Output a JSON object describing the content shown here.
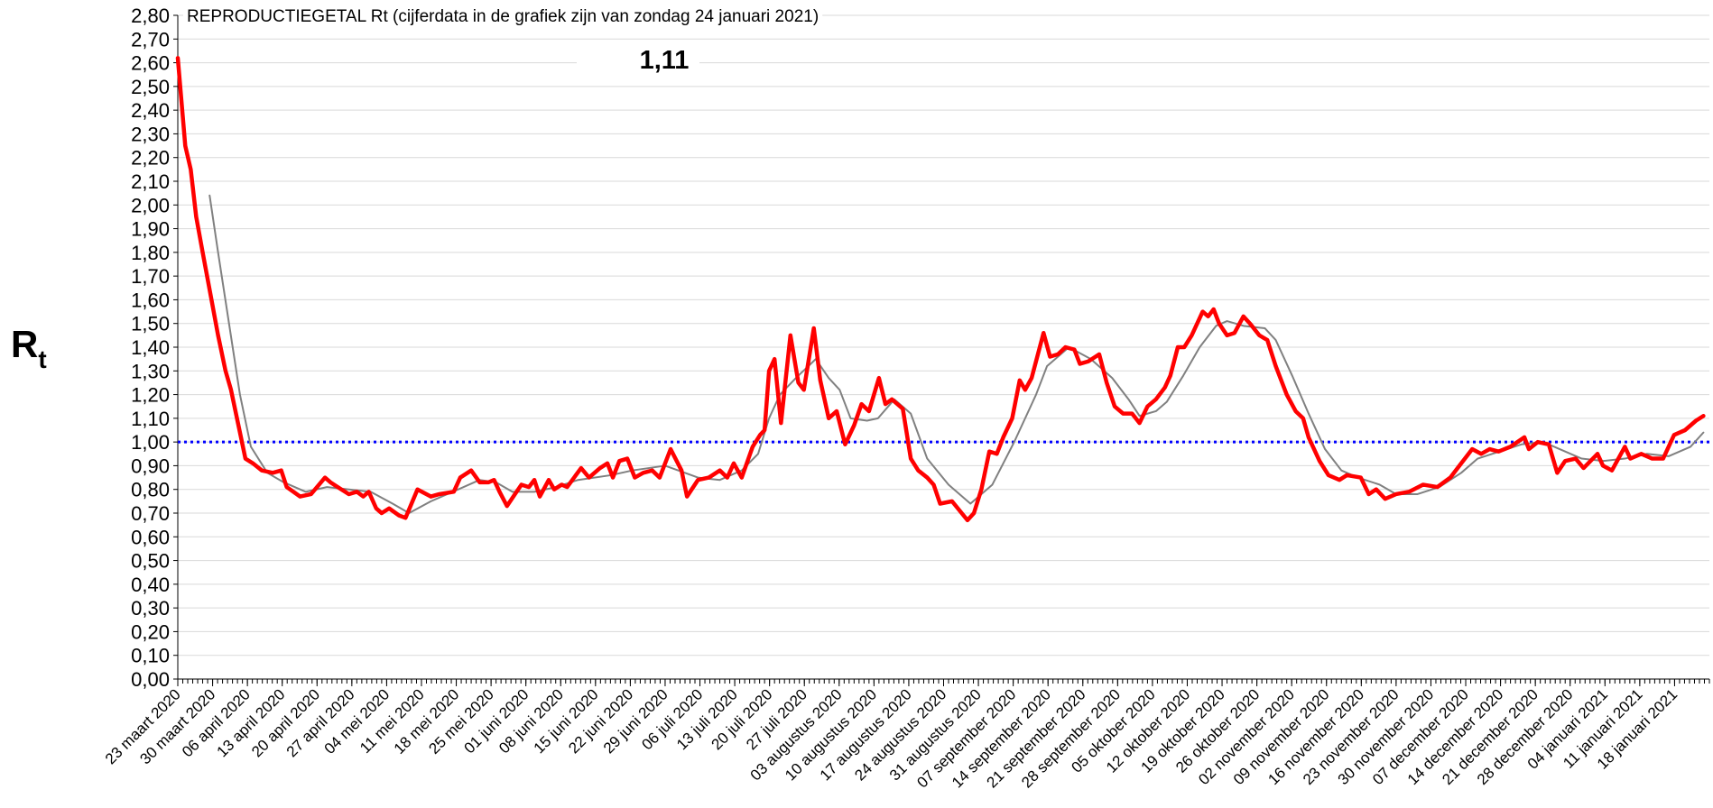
{
  "chart_data": {
    "type": "line",
    "title": "REPRODUCTIEGETAL Rt (cijferdata in de grafiek zijn van zondag 24 januari 2021)",
    "ylabel": {
      "main": "R",
      "sub": "t"
    },
    "annotation": "1,11",
    "xlim": [
      0,
      308
    ],
    "xticks": [
      {
        "value": 0,
        "label": "23 maart 2020"
      },
      {
        "value": 7,
        "label": "30 maart 2020"
      },
      {
        "value": 14,
        "label": "06 april 2020"
      },
      {
        "value": 21,
        "label": "13 april 2020"
      },
      {
        "value": 28,
        "label": "20 april 2020"
      },
      {
        "value": 35,
        "label": "27 april 2020"
      },
      {
        "value": 42,
        "label": "04 mei 2020"
      },
      {
        "value": 49,
        "label": "11 mei 2020"
      },
      {
        "value": 56,
        "label": "18 mei 2020"
      },
      {
        "value": 63,
        "label": "25 mei 2020"
      },
      {
        "value": 70,
        "label": "01 juni 2020"
      },
      {
        "value": 77,
        "label": "08 juni 2020"
      },
      {
        "value": 84,
        "label": "15 juni 2020"
      },
      {
        "value": 91,
        "label": "22 juni 2020"
      },
      {
        "value": 98,
        "label": "29 juni 2020"
      },
      {
        "value": 105,
        "label": "06 juli 2020"
      },
      {
        "value": 112,
        "label": "13 juli 2020"
      },
      {
        "value": 119,
        "label": "20 juli 2020"
      },
      {
        "value": 126,
        "label": "27 juli 2020"
      },
      {
        "value": 133,
        "label": "03 augustus 2020"
      },
      {
        "value": 140,
        "label": "10 augustus 2020"
      },
      {
        "value": 147,
        "label": "17 augustus 2020"
      },
      {
        "value": 154,
        "label": "24 augustus 2020"
      },
      {
        "value": 161,
        "label": "31 augustus 2020"
      },
      {
        "value": 168,
        "label": "07 september 2020"
      },
      {
        "value": 175,
        "label": "14 september 2020"
      },
      {
        "value": 182,
        "label": "21 september 2020"
      },
      {
        "value": 189,
        "label": "28 september 2020"
      },
      {
        "value": 196,
        "label": "05 oktober 2020"
      },
      {
        "value": 203,
        "label": "12 oktober 2020"
      },
      {
        "value": 210,
        "label": "19 oktober 2020"
      },
      {
        "value": 217,
        "label": "26 oktober 2020"
      },
      {
        "value": 224,
        "label": "02 november 2020"
      },
      {
        "value": 231,
        "label": "09 november 2020"
      },
      {
        "value": 238,
        "label": "16 november 2020"
      },
      {
        "value": 245,
        "label": "23 november 2020"
      },
      {
        "value": 252,
        "label": "30 november 2020"
      },
      {
        "value": 259,
        "label": "07 december 2020"
      },
      {
        "value": 266,
        "label": "14 december 2020"
      },
      {
        "value": 273,
        "label": "21 december 2020"
      },
      {
        "value": 280,
        "label": "28 december 2020"
      },
      {
        "value": 287,
        "label": "04 januari 2021"
      },
      {
        "value": 294,
        "label": "11 januari 2021"
      },
      {
        "value": 301,
        "label": "18 januari 2021"
      }
    ],
    "ylim": [
      0,
      2.8
    ],
    "yticks": [
      {
        "value": 0,
        "label": "0,00"
      },
      {
        "value": 0.1,
        "label": "0,10"
      },
      {
        "value": 0.2,
        "label": "0,20"
      },
      {
        "value": 0.3,
        "label": "0,30"
      },
      {
        "value": 0.4,
        "label": "0,40"
      },
      {
        "value": 0.5,
        "label": "0,50"
      },
      {
        "value": 0.6,
        "label": "0,60"
      },
      {
        "value": 0.7,
        "label": "0,70"
      },
      {
        "value": 0.8,
        "label": "0,80"
      },
      {
        "value": 0.9,
        "label": "0,90"
      },
      {
        "value": 1,
        "label": "1,00"
      },
      {
        "value": 1.1,
        "label": "1,10"
      },
      {
        "value": 1.2,
        "label": "1,20"
      },
      {
        "value": 1.3,
        "label": "1,30"
      },
      {
        "value": 1.4,
        "label": "1,40"
      },
      {
        "value": 1.5,
        "label": "1,50"
      },
      {
        "value": 1.6,
        "label": "1,60"
      },
      {
        "value": 1.7,
        "label": "1,70"
      },
      {
        "value": 1.8,
        "label": "1,80"
      },
      {
        "value": 1.9,
        "label": "1,90"
      },
      {
        "value": 2,
        "label": "2,00"
      },
      {
        "value": 2.1,
        "label": "2,10"
      },
      {
        "value": 2.2,
        "label": "2,20"
      },
      {
        "value": 2.3,
        "label": "2,30"
      },
      {
        "value": 2.4,
        "label": "2,40"
      },
      {
        "value": 2.5,
        "label": "2,50"
      },
      {
        "value": 2.6,
        "label": "2,60"
      },
      {
        "value": 2.7,
        "label": "2,70"
      },
      {
        "value": 2.8,
        "label": "2,80"
      }
    ],
    "grid": true,
    "reference_line": {
      "value": 1,
      "color": "#0000ff"
    },
    "series": [
      {
        "color": "#ff0000",
        "width": 4.5,
        "x": [
          0,
          1.5,
          2.6,
          3.7,
          5.0,
          6.6,
          8.1,
          9.6,
          10.7,
          12.1,
          13.6,
          15.1,
          16.9,
          19.1,
          20.8,
          21.9,
          24.6,
          26.8,
          29.6,
          30.7,
          32.9,
          34.4,
          36.0,
          37.3,
          38.4,
          39.9,
          41.0,
          42.5,
          44.5,
          45.8,
          48.2,
          50.9,
          52.6,
          55.5,
          56.8,
          59.0,
          60.7,
          62.5,
          63.6,
          64.7,
          66.2,
          67.8,
          69.1,
          70.6,
          71.7,
          72.8,
          74.6,
          75.7,
          77.2,
          78.3,
          81.1,
          82.7,
          84.9,
          86.4,
          87.5,
          88.8,
          90.4,
          91.9,
          93.6,
          95.4,
          96.9,
          99.1,
          101.3,
          102.4,
          104.6,
          106.8,
          109.0,
          110.5,
          111.8,
          113.4,
          115.6,
          117.1,
          118.0,
          118.9,
          120.0,
          121.3,
          123.2,
          124.8,
          125.9,
          127.9,
          129.2,
          130.9,
          132.5,
          134.2,
          136.0,
          137.5,
          139.0,
          141.0,
          142.3,
          143.6,
          145.8,
          147.4,
          148.9,
          150.7,
          152.0,
          153.3,
          155.7,
          158.8,
          160.1,
          161.6,
          163.2,
          164.7,
          166.0,
          167.8,
          169.3,
          170.4,
          171.7,
          174.1,
          175.4,
          177.0,
          178.5,
          180.3,
          181.4,
          183.1,
          185.3,
          186.8,
          188.4,
          190.1,
          191.9,
          193.4,
          195.0,
          196.7,
          198.5,
          199.6,
          201.1,
          202.4,
          203.9,
          206.1,
          207.2,
          208.3,
          209.4,
          211.0,
          212.5,
          214.3,
          215.6,
          217.5,
          219.1,
          220.8,
          223.0,
          224.8,
          226.3,
          227.4,
          229.6,
          231.4,
          233.6,
          235.1,
          237.9,
          239.5,
          241.0,
          242.8,
          245.0,
          247.6,
          250.4,
          253.3,
          255.9,
          258.1,
          260.3,
          262.1,
          263.8,
          265.6,
          268.0,
          270.8,
          271.7,
          273.5,
          275.7,
          277.4,
          279.0,
          281.1,
          282.7,
          285.5,
          286.6,
          288.4,
          291.0,
          292.1,
          294.3,
          296.5,
          298.7,
          300.9,
          303.1,
          305.3,
          306.8
        ],
        "values": [
          2.62,
          2.25,
          2.15,
          1.95,
          1.8,
          1.62,
          1.45,
          1.3,
          1.22,
          1.08,
          0.93,
          0.91,
          0.88,
          0.87,
          0.88,
          0.81,
          0.77,
          0.78,
          0.85,
          0.83,
          0.8,
          0.78,
          0.79,
          0.77,
          0.79,
          0.72,
          0.7,
          0.72,
          0.69,
          0.68,
          0.8,
          0.77,
          0.78,
          0.79,
          0.85,
          0.88,
          0.83,
          0.83,
          0.84,
          0.79,
          0.73,
          0.78,
          0.82,
          0.81,
          0.84,
          0.77,
          0.84,
          0.8,
          0.82,
          0.81,
          0.89,
          0.85,
          0.89,
          0.91,
          0.85,
          0.92,
          0.93,
          0.85,
          0.87,
          0.88,
          0.85,
          0.97,
          0.88,
          0.77,
          0.84,
          0.85,
          0.88,
          0.85,
          0.91,
          0.85,
          0.98,
          1.03,
          1.05,
          1.3,
          1.35,
          1.08,
          1.45,
          1.25,
          1.22,
          1.48,
          1.26,
          1.1,
          1.13,
          0.99,
          1.07,
          1.16,
          1.13,
          1.27,
          1.16,
          1.18,
          1.14,
          0.93,
          0.88,
          0.85,
          0.82,
          0.74,
          0.75,
          0.67,
          0.7,
          0.8,
          0.96,
          0.95,
          1.02,
          1.1,
          1.26,
          1.22,
          1.27,
          1.46,
          1.36,
          1.37,
          1.4,
          1.39,
          1.33,
          1.34,
          1.37,
          1.25,
          1.15,
          1.12,
          1.12,
          1.08,
          1.15,
          1.18,
          1.23,
          1.28,
          1.4,
          1.4,
          1.45,
          1.55,
          1.53,
          1.56,
          1.5,
          1.45,
          1.46,
          1.53,
          1.5,
          1.45,
          1.43,
          1.32,
          1.2,
          1.13,
          1.1,
          1.02,
          0.92,
          0.86,
          0.84,
          0.86,
          0.85,
          0.78,
          0.8,
          0.76,
          0.78,
          0.79,
          0.82,
          0.81,
          0.85,
          0.91,
          0.97,
          0.95,
          0.97,
          0.96,
          0.98,
          1.02,
          0.97,
          1.0,
          0.99,
          0.87,
          0.92,
          0.93,
          0.89,
          0.95,
          0.9,
          0.88,
          0.98,
          0.93,
          0.95,
          0.93,
          0.93,
          1.03,
          1.05,
          1.09,
          1.11
        ]
      },
      {
        "color": "#808080",
        "width": 2,
        "x": [
          6.4,
          8.1,
          10.3,
          12.5,
          14.7,
          18.0,
          21.3,
          25.7,
          30.0,
          34.4,
          38.8,
          43.2,
          46.5,
          50.9,
          56.4,
          60.7,
          64.0,
          67.3,
          71.7,
          76.1,
          80.5,
          87.1,
          91.4,
          98.0,
          104.6,
          109.0,
          113.4,
          116.7,
          118.9,
          121.1,
          124.3,
          128.3,
          130.9,
          133.1,
          135.3,
          138.6,
          140.8,
          144.1,
          147.4,
          150.7,
          155.0,
          159.4,
          163.8,
          168.2,
          172.6,
          174.8,
          179.2,
          183.6,
          187.9,
          191.2,
          193.4,
          196.7,
          198.9,
          202.2,
          205.5,
          208.8,
          211.0,
          214.3,
          218.6,
          220.8,
          224.1,
          227.4,
          230.7,
          234.0,
          237.3,
          241.7,
          245.0,
          249.3,
          253.7,
          258.1,
          261.4,
          265.8,
          270.2,
          274.6,
          277.9,
          282.3,
          286.6,
          291.0,
          295.4,
          299.8,
          304.2,
          306.8
        ],
        "values": [
          2.04,
          1.8,
          1.5,
          1.2,
          0.98,
          0.87,
          0.83,
          0.79,
          0.81,
          0.8,
          0.79,
          0.74,
          0.7,
          0.75,
          0.8,
          0.84,
          0.83,
          0.79,
          0.79,
          0.81,
          0.84,
          0.86,
          0.88,
          0.9,
          0.85,
          0.84,
          0.88,
          0.95,
          1.1,
          1.2,
          1.27,
          1.35,
          1.27,
          1.22,
          1.1,
          1.09,
          1.1,
          1.18,
          1.12,
          0.93,
          0.82,
          0.74,
          0.82,
          1.0,
          1.2,
          1.32,
          1.4,
          1.35,
          1.27,
          1.18,
          1.11,
          1.13,
          1.17,
          1.28,
          1.4,
          1.49,
          1.51,
          1.49,
          1.48,
          1.43,
          1.28,
          1.12,
          0.97,
          0.88,
          0.85,
          0.82,
          0.78,
          0.78,
          0.81,
          0.87,
          0.93,
          0.96,
          0.99,
          1.0,
          0.97,
          0.93,
          0.92,
          0.93,
          0.95,
          0.94,
          0.98,
          1.04
        ]
      }
    ]
  }
}
